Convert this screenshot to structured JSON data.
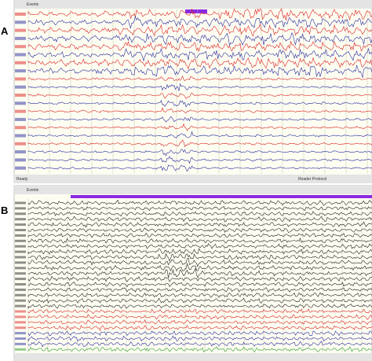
{
  "panels": [
    {
      "label": "A",
      "toolbar": "Events",
      "status": "Ready",
      "status_right": "Reader Protocol"
    },
    {
      "label": "B",
      "toolbar": "Events"
    }
  ]
}
